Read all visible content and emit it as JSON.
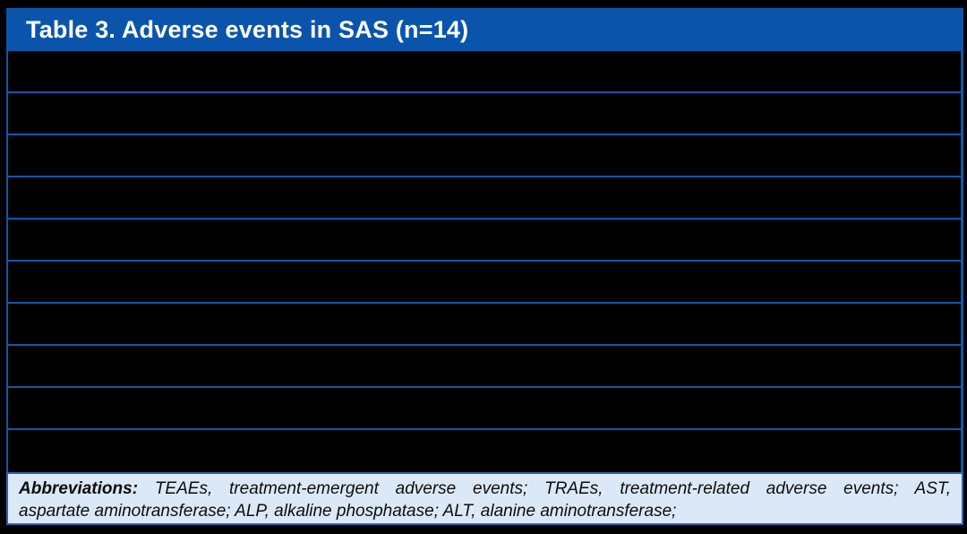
{
  "page": {
    "background_color": "#000000"
  },
  "table": {
    "title": "Table 3. Adverse events in SAS (n=14)",
    "header_bg_color": "#0a55ab",
    "header_text_color": "#ffffff",
    "grid_line_color": "#0d58ac",
    "row_bg_color": "#000000",
    "rows": [
      "",
      "",
      "",
      "",
      "",
      "",
      "",
      "",
      "",
      ""
    ],
    "footer": {
      "bg_color": "#dbe8f7",
      "border_color": "#2a67b0",
      "label": "Abbreviations:",
      "line1_rest": "TEAEs, treatment-emergent adverse events; TRAEs, treatment-related adverse events; AST,",
      "line2": "aspartate aminotransferase; ALP, alkaline phosphatase; ALT, alanine aminotransferase;"
    }
  },
  "chart_data": {
    "type": "table",
    "title": "Table 3. Adverse events in SAS (n=14)",
    "columns": [],
    "rows": [
      [],
      [],
      [],
      [],
      [],
      [],
      [],
      [],
      [],
      []
    ],
    "note": "10 blank (blacked-out) rows separated by blue grid lines; no cell values visible"
  }
}
